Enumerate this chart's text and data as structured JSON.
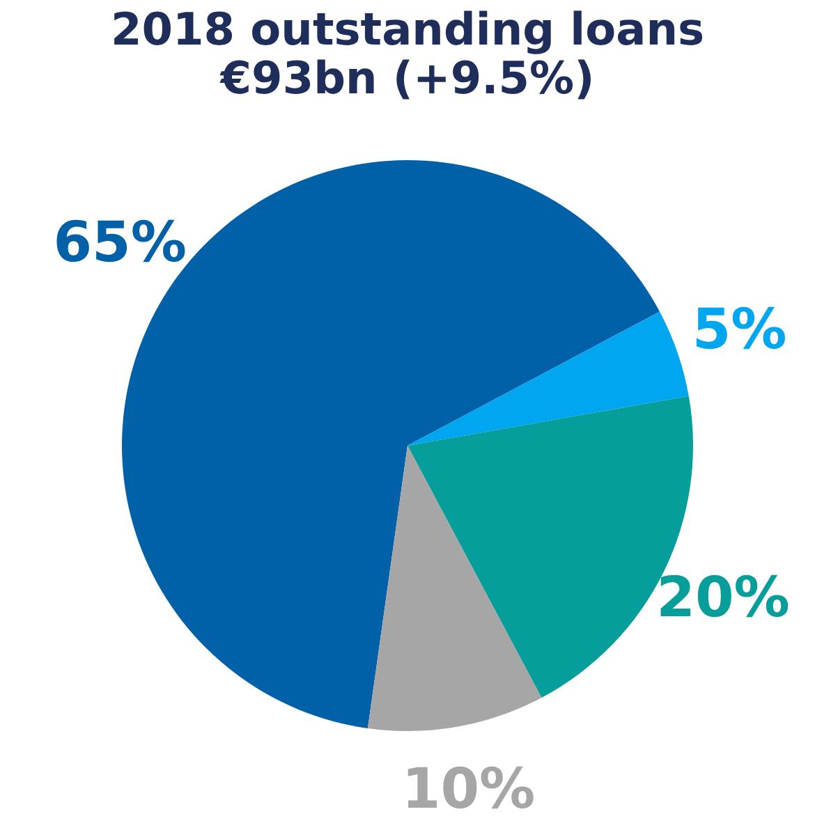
{
  "chart_data": {
    "type": "pie",
    "title": "2018 outstanding loans",
    "subtitle": "€93bn (+9.5%)",
    "categories": [
      null,
      null,
      null,
      null
    ],
    "values": [
      65,
      5,
      20,
      10
    ],
    "colors": [
      "#0060a8",
      "#00a6f0",
      "#069e9a",
      "#a6a6a6"
    ],
    "value_labels": [
      "65%",
      "5%",
      "20%",
      "10%"
    ],
    "legend": false
  }
}
